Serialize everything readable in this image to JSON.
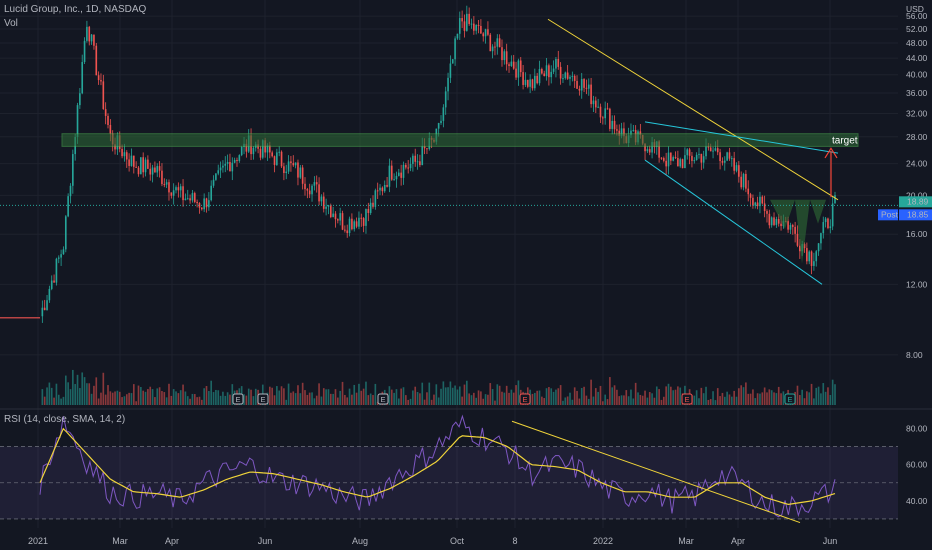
{
  "header": {
    "symbol_title": "Lucid Group, Inc., 1D, NASDAQ",
    "volume_label": "Vol",
    "rsi_label": "RSI (14, close, SMA, 14, 2)"
  },
  "price_axis": {
    "currency": "USD",
    "ticks": [
      "56.00",
      "52.00",
      "48.00",
      "44.00",
      "40.00",
      "36.00",
      "32.00",
      "28.00",
      "24.00",
      "20.00",
      "16.00",
      "12.00",
      "8.00"
    ],
    "tick_values": [
      56,
      52,
      48,
      44,
      40,
      36,
      32,
      28,
      24,
      20,
      16,
      12,
      8
    ],
    "last_price_label": "18.89",
    "post_label": "Post",
    "post_price_label": "18.85"
  },
  "rsi_axis": {
    "ticks": [
      "80.00",
      "60.00",
      "40.00"
    ],
    "tick_values": [
      80,
      60,
      40
    ],
    "band_upper": 70,
    "band_lower": 30,
    "mid": 50
  },
  "time_axis": {
    "labels": [
      "2021",
      "Mar",
      "Apr",
      "Jun",
      "Aug",
      "Oct",
      "8",
      "2022",
      "Mar",
      "Apr",
      "Jun"
    ]
  },
  "annotations": {
    "target_label": "target",
    "earnings_marker": "E"
  },
  "colors": {
    "background": "#131722",
    "up": "#26a69a",
    "down": "#ef5350",
    "trendline": "#f0d43a",
    "channel": "#26c6da",
    "zone_fill": "#2e6b36",
    "zone_border": "#4caf50",
    "rsi_line": "#7e57c2",
    "rsi_sma": "#f0d43a",
    "target_arrow": "#f44336",
    "post_badge": "#2962ff"
  },
  "chart_data": {
    "type": "candlestick",
    "title": "Lucid Group, Inc., 1D, NASDAQ",
    "ylabel": "USD",
    "ylim": [
      6,
      58
    ],
    "y_scale": "log",
    "x_labels": [
      "2021",
      "Mar",
      "Apr",
      "Jun",
      "Aug",
      "Oct",
      "8",
      "2022",
      "Mar",
      "Apr",
      "Jun"
    ],
    "series": [
      {
        "name": "",
        "type": "close",
        "x": [
          "Jan",
          "Feb",
          "Feb",
          "Mar",
          "Mar",
          "Apr",
          "Apr",
          "May",
          "Jun",
          "Jun",
          "Jul",
          "Jul",
          "Aug",
          "Aug",
          "Sep",
          "Sep",
          "Oct",
          "Oct",
          "Nov",
          "Nov",
          "Nov",
          "Dec",
          "Dec",
          "Jan",
          "Jan",
          "Feb",
          "Feb",
          "Mar",
          "Mar",
          "Apr",
          "Apr",
          "May",
          "May",
          "May",
          "Jun"
        ],
        "values": [
          10,
          15,
          55,
          28,
          24,
          23,
          20,
          19,
          24,
          27,
          25,
          23,
          20,
          17,
          18,
          23,
          24,
          28,
          55,
          50,
          44,
          38,
          42,
          39,
          33,
          28,
          27,
          24,
          25,
          26,
          22,
          18,
          17,
          14,
          18.9
        ]
      }
    ],
    "resistance_zone": [
      26.5,
      28.5
    ],
    "target_label": "target",
    "last_price": 18.89,
    "post_price": 18.85,
    "rsi": {
      "name": "RSI (14, close, SMA, 14, 2)",
      "ylim": [
        25,
        88
      ],
      "values": [
        50,
        85,
        62,
        45,
        42,
        44,
        40,
        50,
        56,
        60,
        52,
        50,
        48,
        42,
        40,
        52,
        60,
        70,
        82,
        75,
        68,
        55,
        60,
        58,
        48,
        42,
        46,
        40,
        42,
        55,
        50,
        38,
        36,
        40,
        46
      ],
      "sma": [
        50,
        80,
        66,
        52,
        45,
        44,
        42,
        46,
        52,
        56,
        55,
        52,
        49,
        45,
        42,
        47,
        54,
        62,
        76,
        75,
        70,
        60,
        59,
        57,
        50,
        45,
        45,
        42,
        42,
        50,
        50,
        42,
        38,
        40,
        44
      ]
    }
  }
}
